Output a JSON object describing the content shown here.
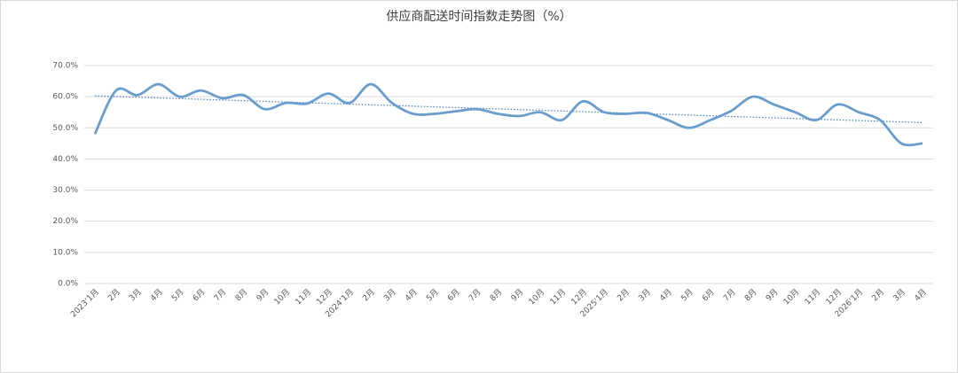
{
  "chart_data": {
    "type": "line",
    "title": "供应商配送时间指数走势图（%）",
    "categories": [
      "2023’1月",
      "2月",
      "3月",
      "4月",
      "5月",
      "6月",
      "7月",
      "8月",
      "9月",
      "10月",
      "11月",
      "12月",
      "2024’1月",
      "2月",
      "3月",
      "4月",
      "5月",
      "6月",
      "7月",
      "8月",
      "9月",
      "10月",
      "11月",
      "12月",
      "2025'1月",
      "2月",
      "3月",
      "4月",
      "5月",
      "6月",
      "7月",
      "8月",
      "9月",
      "10月",
      "11月",
      "12月",
      "2026'1月",
      "2月",
      "3月",
      "4月"
    ],
    "values": [
      48,
      62,
      60.5,
      64,
      60,
      62,
      59.5,
      60.5,
      56,
      58,
      57.8,
      61,
      58,
      64,
      58,
      54.5,
      54.5,
      55.3,
      56,
      54.5,
      53.8,
      55,
      52.5,
      58.5,
      55,
      54.5,
      54.8,
      52.5,
      50,
      52.5,
      55.5,
      60,
      57.5,
      55,
      52.5,
      57.5,
      55,
      52.5,
      45,
      45
    ],
    "color": "#6a9ccc",
    "ylim": [
      0,
      70
    ],
    "yticks": [
      {
        "value": 0,
        "label": "0.0%"
      },
      {
        "value": 10,
        "label": "10.0%"
      },
      {
        "value": 20,
        "label": "20.0%"
      },
      {
        "value": 30,
        "label": "30.0%"
      },
      {
        "value": 40,
        "label": "40.0%"
      },
      {
        "value": 50,
        "label": "50.0%"
      },
      {
        "value": 60,
        "label": "60.0%"
      },
      {
        "value": 70,
        "label": "70.0%"
      }
    ],
    "grid": true,
    "trendline": true,
    "trend_color": "#4f86c6"
  }
}
